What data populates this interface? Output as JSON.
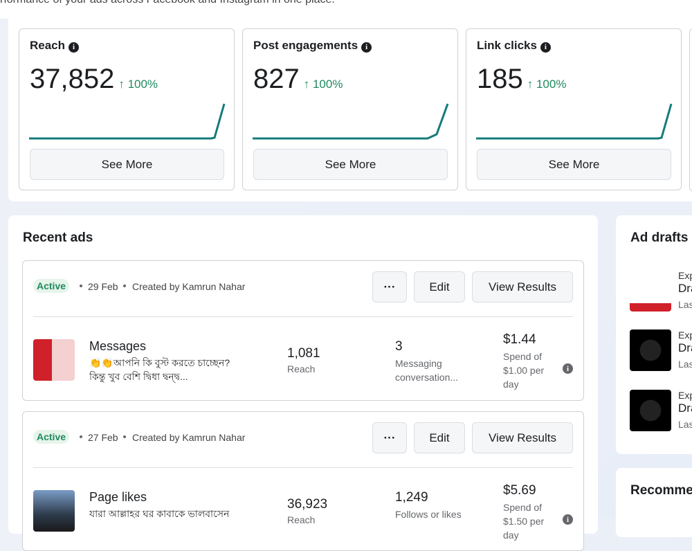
{
  "header": {
    "subtitle": "rformance of your ads across Facebook and Instagram in one place."
  },
  "metrics": [
    {
      "title": "Reach",
      "value": "37,852",
      "change": "↑ 100%",
      "button": "See More"
    },
    {
      "title": "Post engagements",
      "value": "827",
      "change": "↑ 100%",
      "button": "See More"
    },
    {
      "title": "Link clicks",
      "value": "185",
      "change": "↑ 100%",
      "button": "See More"
    }
  ],
  "recent_ads": {
    "title": "Recent ads",
    "ads": [
      {
        "status": "Active",
        "date": "29 Feb",
        "created_by": "Created by Kamrun Nahar",
        "more": "···",
        "edit": "Edit",
        "view": "View Results",
        "objective": "Messages",
        "description": "👏👏আপনি কি বুস্ট করতে চাচ্ছেন? কিন্তু খুব বেশি দ্বিধা দ্বন্দ্ব...",
        "reach": "1,081",
        "reach_label": "Reach",
        "result": "3",
        "result_label": "Messaging conversation...",
        "spend": "$1.44",
        "spend_label": "Spend of $1.00 per day"
      },
      {
        "status": "Active",
        "date": "27 Feb",
        "created_by": "Created by Kamrun Nahar",
        "more": "···",
        "edit": "Edit",
        "view": "View Results",
        "objective": "Page likes",
        "description": "যারা আল্লাহর ঘর কাবাকে ভালবাসেন",
        "reach": "36,923",
        "reach_label": "Reach",
        "result": "1,249",
        "result_label": "Follows or likes",
        "spend": "$5.69",
        "spend_label": "Spend of $1.50 per day"
      }
    ]
  },
  "ad_drafts": {
    "title": "Ad drafts",
    "items": [
      {
        "line1": "Exp",
        "line2": "Dra",
        "line3": "Las"
      },
      {
        "line1": "Exp",
        "line2": "Dra",
        "line3": "Las"
      },
      {
        "line1": "Exp",
        "line2": "Dra",
        "line3": "Las"
      }
    ]
  },
  "recommendations": {
    "title": "Recomme"
  }
}
